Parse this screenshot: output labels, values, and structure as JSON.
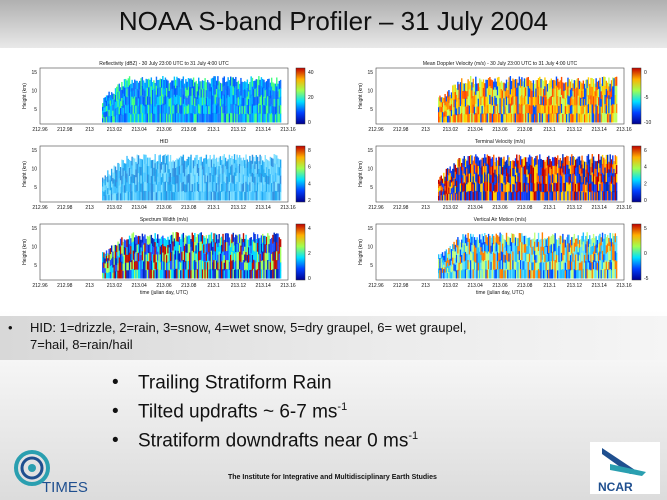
{
  "title": "NOAA S-band Profiler – 31 July 2004",
  "panels": [
    {
      "title": "Reflectivity (dBZ) - 30 July 23:00 UTC to 31 July 4:00 UTC",
      "cb": [
        "40",
        "20",
        "0"
      ]
    },
    {
      "title": "Mean Doppler Velocity (m/s) - 30 July 23:00 UTC to 31 July 4:00 UTC",
      "cb": [
        "0",
        "-5",
        "-10"
      ]
    },
    {
      "title": "HID",
      "cb": [
        "8",
        "6",
        "4",
        "2"
      ]
    },
    {
      "title": "Terminal Velocity (m/s)",
      "cb": [
        "6",
        "4",
        "2",
        "0"
      ]
    },
    {
      "title": "Spectrum Width (m/s)",
      "cb": [
        "4",
        "2",
        "0"
      ]
    },
    {
      "title": "Vertical Air Motion (m/s)",
      "cb": [
        "5",
        "0",
        "-5"
      ]
    }
  ],
  "y_axis_label": "Height (km)",
  "y_ticks": [
    "15",
    "10",
    "5"
  ],
  "x_ticks": [
    "212.96",
    "212.98",
    "213",
    "213.02",
    "213.04",
    "213.06",
    "213.08",
    "213.1",
    "213.12",
    "213.14",
    "213.16"
  ],
  "x_axis_label": "time (julian day, UTC)",
  "hid_bullet": "•",
  "hid_text": "HID: 1=drizzle, 2=rain, 3=snow, 4=wet snow, 5=dry graupel, 6= wet graupel, 7=hail, 8=rain/hail",
  "big_bullet": "•",
  "points": [
    {
      "text": "Trailing Stratiform Rain",
      "sup": ""
    },
    {
      "text": "Tilted updrafts  ~ 6-7 ms",
      "sup": "-1"
    },
    {
      "text": "Stratiform downdrafts near 0 ms",
      "sup": "-1"
    }
  ],
  "footer": "The Institute for Integrative and Multidisciplinary Earth Studies",
  "logo_times": "TIMES",
  "logo_ncar": "NCAR",
  "colors": {
    "accent": "#1f4f8f",
    "teal": "#2a9fb0"
  }
}
